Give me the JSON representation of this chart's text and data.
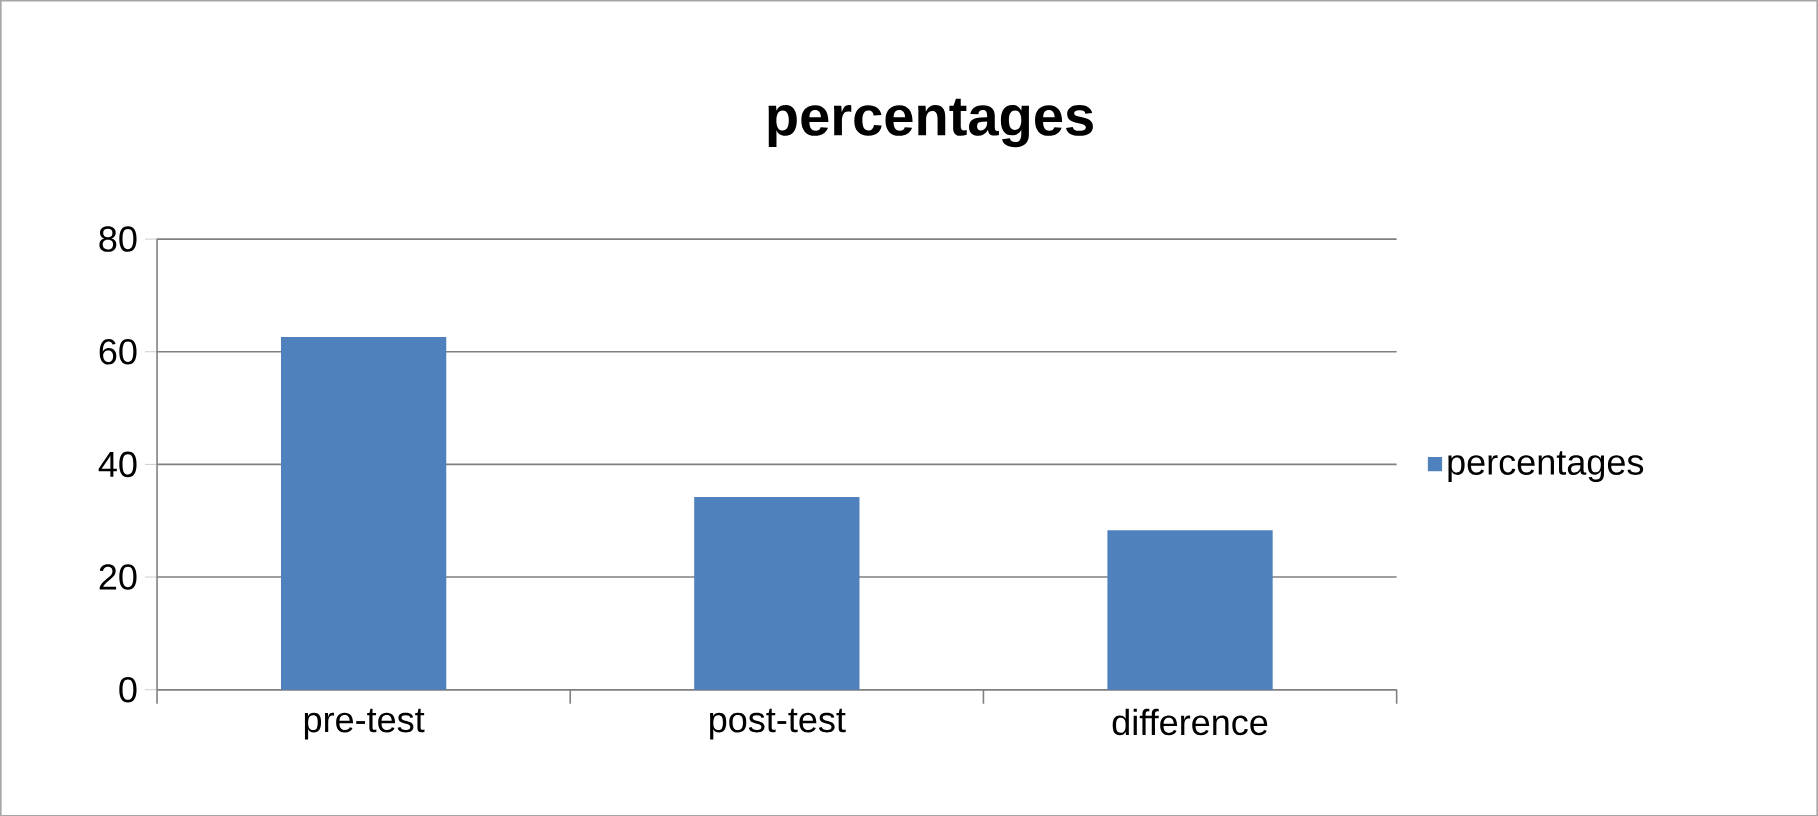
{
  "chart_data": {
    "type": "bar",
    "title": "percentages",
    "categories": [
      "pre-test",
      "post-test",
      "difference"
    ],
    "series": [
      {
        "name": "percentages",
        "color": "#4f81bd",
        "values": [
          62.6,
          34.2,
          28.3
        ]
      }
    ],
    "ylim": [
      0,
      80
    ],
    "yticks": [
      0,
      20,
      40,
      60,
      80
    ],
    "grid": "y",
    "legend": "right"
  }
}
